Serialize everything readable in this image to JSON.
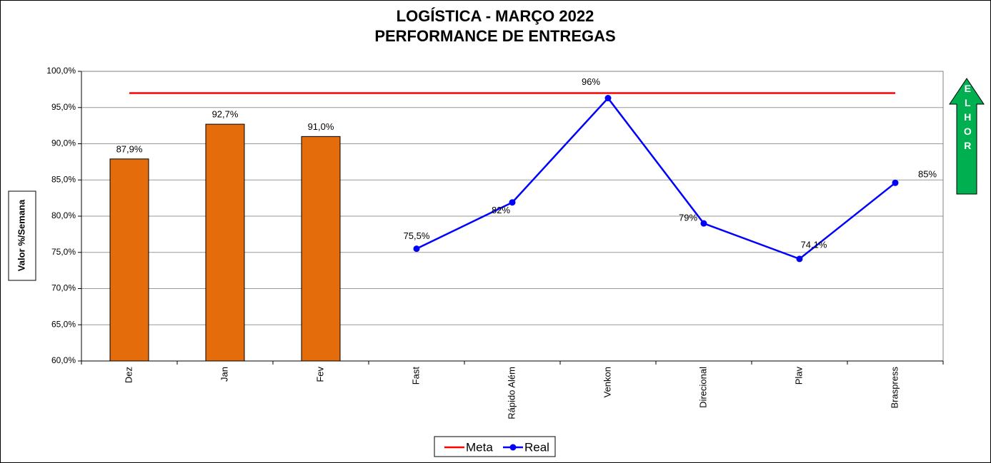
{
  "chart_data": {
    "type": "combo",
    "title": "LOGÍSTICA - MARÇO 2022",
    "subtitle": "PERFORMANCE DE ENTREGAS",
    "y_label": "Valor %/Semana",
    "annotation": "MELHOR",
    "categories": [
      "Dez",
      "Jan",
      "Fev",
      "Fast",
      "Rápido Além",
      "Venkon",
      "Direcional",
      "Plav",
      "Braspress"
    ],
    "bars": {
      "color": "#e46c0a",
      "values": [
        87.9,
        92.7,
        91.0,
        null,
        null,
        null,
        null,
        null,
        null
      ],
      "value_labels": [
        "87,9%",
        "92,7%",
        "91,0%",
        null,
        null,
        null,
        null,
        null,
        null
      ]
    },
    "series": [
      {
        "name": "Meta",
        "color": "#ff0000",
        "values": [
          97,
          97,
          97,
          97,
          97,
          97,
          97,
          97,
          97
        ]
      },
      {
        "name": "Real",
        "color": "#0000ff",
        "values": [
          null,
          null,
          null,
          75.5,
          81.9,
          96.3,
          79.0,
          74.1,
          84.6
        ],
        "value_labels": [
          null,
          null,
          null,
          "75,5%",
          "82%",
          "96%",
          "79%",
          "74,1%",
          "85%"
        ]
      }
    ],
    "ylim": [
      60,
      100
    ],
    "yticks": [
      {
        "value": 60,
        "label": "60,0%"
      },
      {
        "value": 65,
        "label": "65,0%"
      },
      {
        "value": 70,
        "label": "70,0%"
      },
      {
        "value": 75,
        "label": "75,0%"
      },
      {
        "value": 80,
        "label": "80,0%"
      },
      {
        "value": 85,
        "label": "85,0%"
      },
      {
        "value": 90,
        "label": "90,0%"
      },
      {
        "value": 95,
        "label": "95,0%"
      },
      {
        "value": 100,
        "label": "100,0%"
      }
    ],
    "grid": true,
    "legend": "bottom"
  }
}
